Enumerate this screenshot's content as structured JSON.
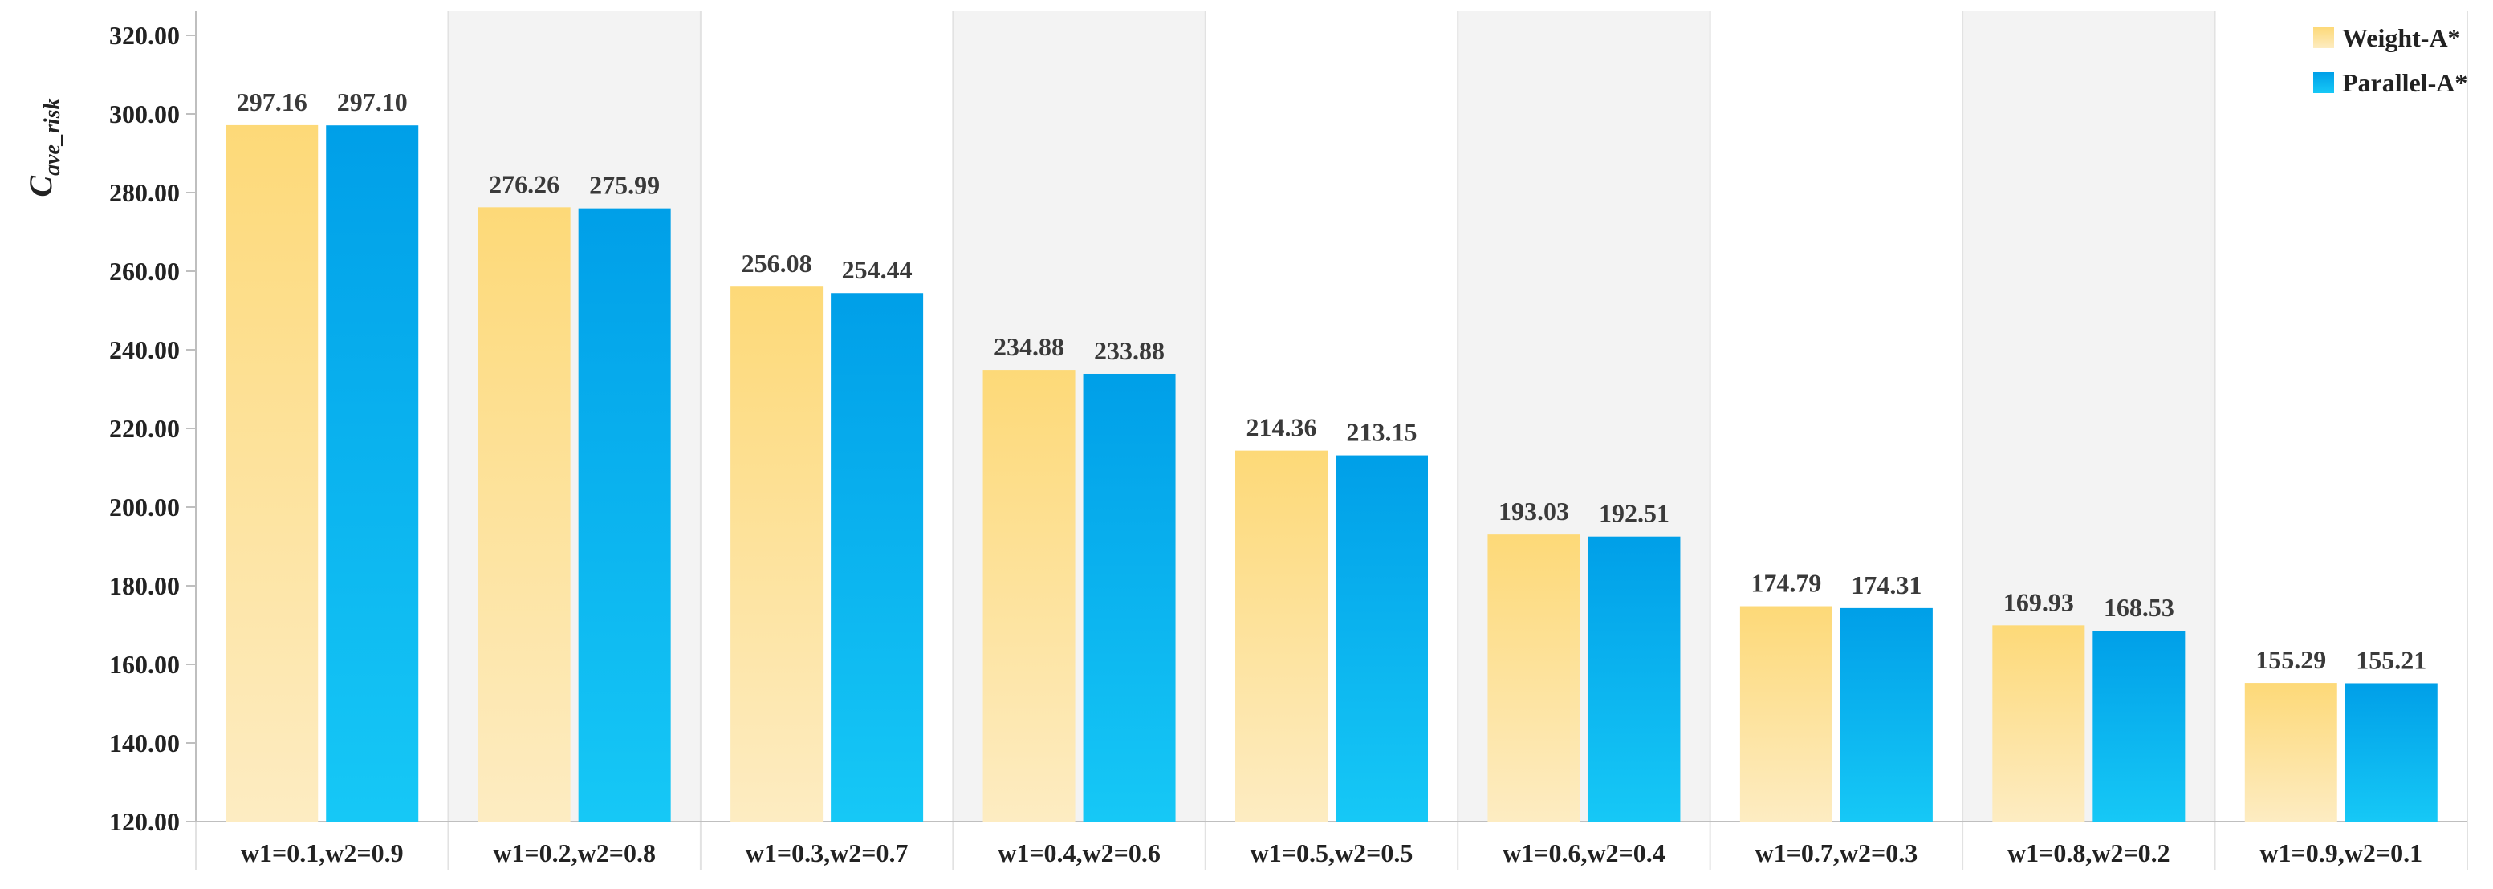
{
  "chart_data": {
    "type": "bar",
    "title": "",
    "xlabel": "",
    "ylabel": "C",
    "ylabel_subscript": "ave_risk",
    "ylim": [
      120,
      320
    ],
    "yticks": [
      "120.00",
      "140.00",
      "160.00",
      "180.00",
      "200.00",
      "220.00",
      "240.00",
      "260.00",
      "280.00",
      "300.00",
      "320.00"
    ],
    "categories": [
      "w1=0.1,w2=0.9",
      "w1=0.2,w2=0.8",
      "w1=0.3,w2=0.7",
      "w1=0.4,w2=0.6",
      "w1=0.5,w2=0.5",
      "w1=0.6,w2=0.4",
      "w1=0.7,w2=0.3",
      "w1=0.8,w2=0.2",
      "w1=0.9,w2=0.1"
    ],
    "series": [
      {
        "name": "Weight-A*",
        "color_top": "#fdd978",
        "color_bottom": "#fdecc2",
        "values": [
          297.16,
          276.26,
          256.08,
          234.88,
          214.36,
          193.03,
          174.79,
          169.93,
          155.29
        ],
        "labels": [
          "297.16",
          "276.26",
          "256.08",
          "234.88",
          "214.36",
          "193.03",
          "174.79",
          "169.93",
          "155.29"
        ]
      },
      {
        "name": "Parallel-A*",
        "color_top": "#009fe8",
        "color_bottom": "#16c8f6",
        "values": [
          297.1,
          275.99,
          254.44,
          233.88,
          213.15,
          192.51,
          174.31,
          168.53,
          155.21
        ],
        "labels": [
          "297.10",
          "275.99",
          "254.44",
          "233.88",
          "213.15",
          "192.51",
          "174.31",
          "168.53",
          "155.21"
        ]
      }
    ],
    "grid": "vertical-bands",
    "band_color": "#f3f3f3",
    "legend_position": "top-right"
  }
}
